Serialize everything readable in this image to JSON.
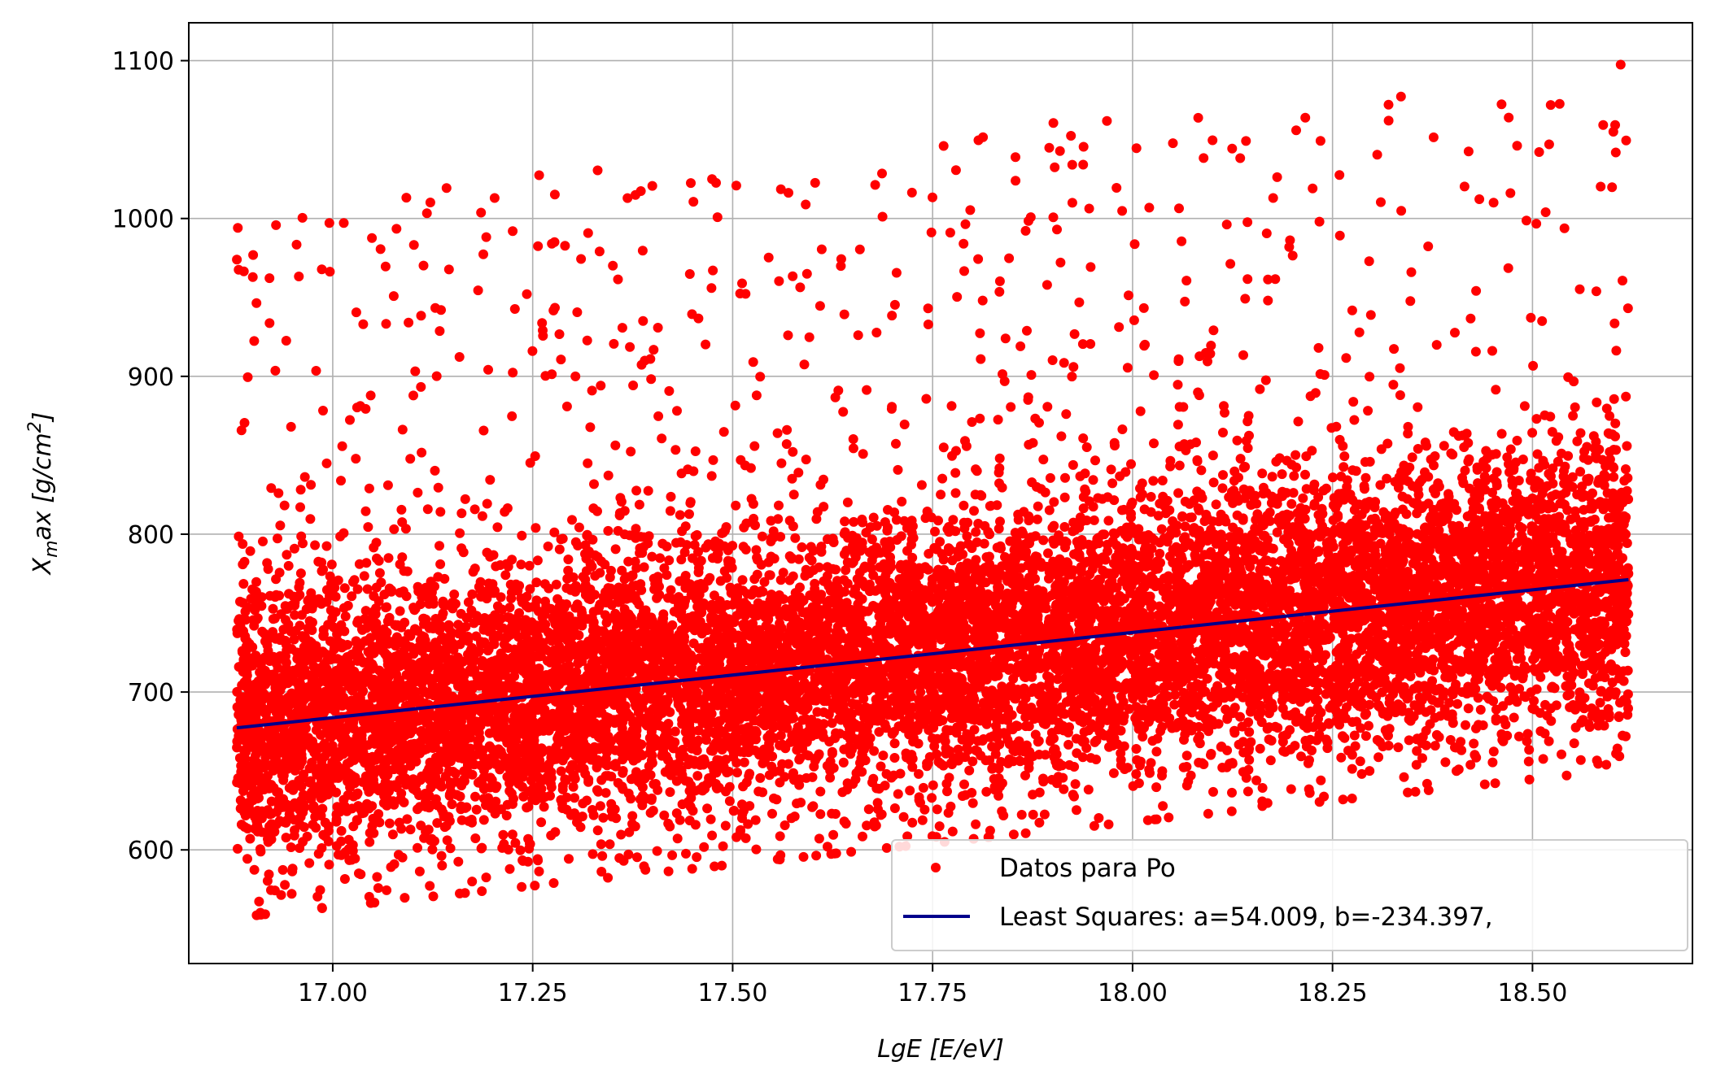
{
  "chart_data": {
    "type": "scatter",
    "xlabel": "LgE [E/eV]",
    "ylabel_main": "X",
    "ylabel_sub": "m",
    "ylabel_rest": "ax [g/cm",
    "ylabel_sup": "2",
    "ylabel_end": "]",
    "xlim": [
      16.82,
      18.7
    ],
    "ylim": [
      528,
      1124
    ],
    "grid": true,
    "legend_position": "lower-right",
    "x_ticks": [
      17.0,
      17.25,
      17.5,
      17.75,
      18.0,
      18.25,
      18.5
    ],
    "x_tick_labels": [
      "17.00",
      "17.25",
      "17.50",
      "17.75",
      "18.00",
      "18.25",
      "18.50"
    ],
    "y_ticks": [
      600,
      700,
      800,
      900,
      1000,
      1100
    ],
    "y_tick_labels": [
      "600",
      "700",
      "800",
      "900",
      "1000",
      "1100"
    ],
    "series": [
      {
        "name": "Datos para Po",
        "kind": "scatter",
        "color": "#ff0000",
        "x_range": [
          16.88,
          18.62
        ],
        "trend": {
          "slope": 54.009,
          "intercept": -234.397
        },
        "spread_below": 120,
        "spread_above": 330,
        "approx_point_count": 60000
      },
      {
        "name": "Least Squares:  a=54.009, b=-234.397,",
        "kind": "line",
        "color": "#00008b",
        "x": [
          16.88,
          18.62
        ],
        "y": [
          677.3,
          771.2
        ]
      }
    ]
  }
}
